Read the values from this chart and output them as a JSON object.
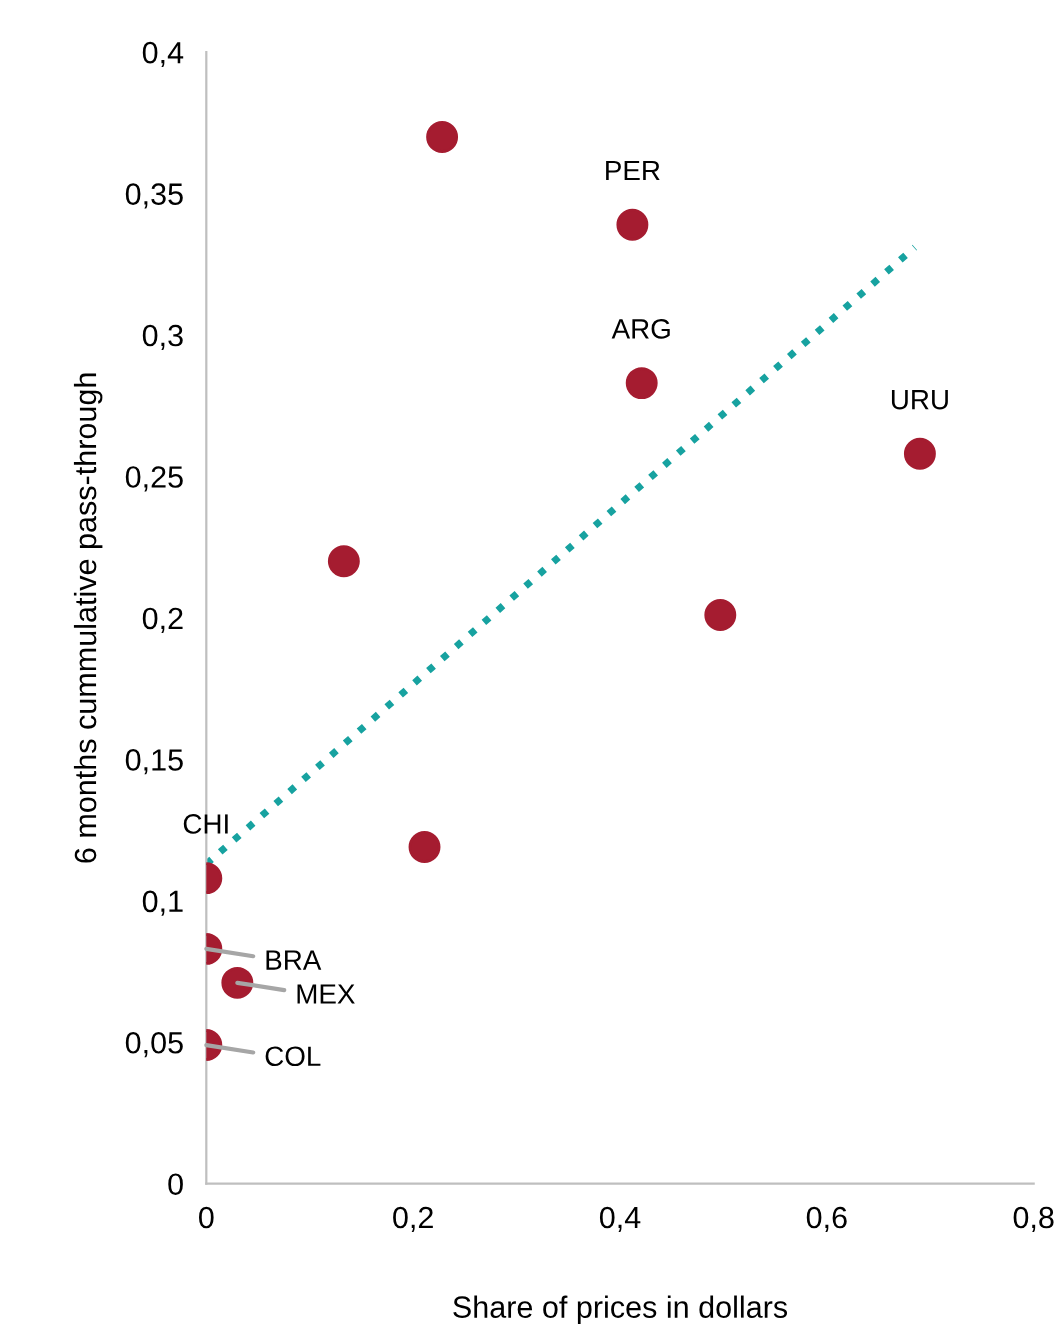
{
  "chart_data": {
    "type": "scatter",
    "xlabel": "Share of prices in dollars",
    "ylabel": "6 months cummulative pass-through",
    "series": [
      {
        "type": "scatter",
        "color": "#a51c30",
        "marker": "circle",
        "x": [
          0.228,
          0.412,
          0.421,
          0.69,
          0.497,
          0.133,
          0.211,
          0,
          0,
          0.03,
          0
        ],
        "values": [
          0.37,
          0.339,
          0.283,
          0.258,
          0.201,
          0.22,
          0.119,
          0.108,
          0.083,
          0.071,
          0.049
        ]
      },
      {
        "type": "line",
        "color": "#17a2a0",
        "line_style": "dotted",
        "marker": "none",
        "x": [
          0,
          0.685
        ],
        "values": [
          0.113,
          0.331
        ]
      }
    ],
    "annotations": [
      {
        "text": "PER",
        "x": 0.412,
        "y": 0.339
      },
      {
        "text": "ARG",
        "x": 0.421,
        "y": 0.283
      },
      {
        "text": "URU",
        "x": 0.69,
        "y": 0.258
      },
      {
        "text": "CHI",
        "x": 0,
        "y": 0.108
      },
      {
        "text": "BRA",
        "x": 0,
        "y": 0.083
      },
      {
        "text": "MEX",
        "x": 0.03,
        "y": 0.071
      },
      {
        "text": "COL",
        "x": 0,
        "y": 0.049
      }
    ],
    "xlim": [
      0,
      0.8
    ],
    "ylim": [
      0,
      0.4
    ],
    "xticks": [
      0,
      {
        "value": 0.2,
        "label": "0,2"
      },
      {
        "value": 0.4,
        "label": "0,4"
      },
      {
        "value": 0.6,
        "label": "0,6"
      },
      {
        "value": 0.8,
        "label": "0,8"
      }
    ],
    "yticks": [
      0,
      {
        "value": 0.05,
        "label": "0,05"
      },
      {
        "value": 0.1,
        "label": "0,1"
      },
      {
        "value": 0.15,
        "label": "0,15"
      },
      {
        "value": 0.2,
        "label": "0,2"
      },
      {
        "value": 0.25,
        "label": "0,25"
      },
      {
        "value": 0.3,
        "label": "0,3"
      },
      {
        "value": 0.35,
        "label": "0,35"
      },
      {
        "value": 0.4,
        "label": "0,4"
      }
    ],
    "grid": false
  }
}
